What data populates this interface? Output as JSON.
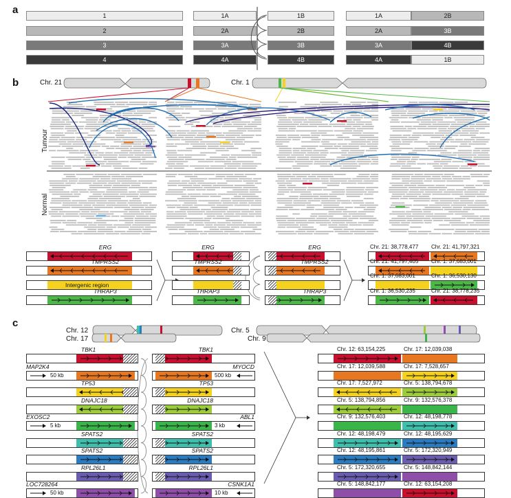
{
  "panel_labels": {
    "a": "a",
    "b": "b",
    "c": "c"
  },
  "panel_a": {
    "col1": [
      "1",
      "2",
      "3",
      "4"
    ],
    "col2_left": [
      "1A",
      "2A",
      "3A",
      "4A"
    ],
    "col2_right": [
      "1B",
      "2B",
      "3B",
      "4B"
    ],
    "col3_left": [
      "1A",
      "2A",
      "3A",
      "4A"
    ],
    "col3_right": [
      "2B",
      "3B",
      "4B",
      "1B"
    ],
    "shades": [
      "#ededed",
      "#b8b8b8",
      "#7a7a7a",
      "#3a3a3a"
    ]
  },
  "panel_b": {
    "chr21_label": "Chr. 21",
    "chr1_label": "Chr. 1",
    "tumour_label": "Tumour",
    "normal_label": "Normal",
    "left_genes": [
      {
        "name": "ERG",
        "color": "#c8102e",
        "dir": "left"
      },
      {
        "name": "TMPRSS2",
        "color": "#e87722",
        "dir": "left"
      },
      {
        "name": "Intergenic region",
        "color": "#f5d21f",
        "dir": "none"
      },
      {
        "name": "THRAP3",
        "color": "#4cb848",
        "dir": "right"
      }
    ],
    "mid_left_labels": [
      "ERG",
      "TMPRSS2",
      "",
      "THRAP3"
    ],
    "mid_right_labels": [
      "ERG",
      "TMPRSS2",
      "",
      "THRAP3"
    ],
    "result_coords": [
      [
        "Chr. 21: 38,778,477",
        "Chr. 21: 41,797,321"
      ],
      [
        "Chr. 21: 41,797,405",
        "Chr. 1: 37,683,001"
      ],
      [
        "Chr. 1: 37,683,001",
        "Chr. 1: 36,530,130"
      ],
      [
        "Chr. 1: 36,530,235",
        "Chr. 21: 38,778,235"
      ]
    ]
  },
  "panel_c": {
    "chr12_label": "Chr. 12",
    "chr17_label": "Chr. 17",
    "chr5_label": "Chr. 5",
    "chr9_label": "Chr. 9",
    "left_genes": [
      "TBK1",
      "MAP2K4",
      "TP53",
      "DNAJC18",
      "EXOSC2",
      "SPATS2",
      "SPATS2",
      "RPL26L1",
      "LOC728264"
    ],
    "left_scales": [
      "",
      "50 kb",
      "",
      "",
      "5 kb",
      "",
      "",
      "",
      "50 kb"
    ],
    "right_genes": [
      "TBK1",
      "MYOCD",
      "TP53",
      "DNAJC18",
      "ABL1",
      "SPATS2",
      "SPATS2",
      "RPL26L1",
      "CSNK1A1"
    ],
    "right_scales": [
      "",
      "500 kb",
      "",
      "",
      "3 kb",
      "",
      "",
      "",
      "10 kb"
    ],
    "colors": [
      "#c8102e",
      "#e87722",
      "#f5d21f",
      "#9ccb3b",
      "#3ab54a",
      "#3fbfad",
      "#2b7bc1",
      "#6a5db0",
      "#8e4fa8"
    ],
    "result_coords": [
      [
        "Chr. 12: 63,154,225",
        "Chr. 17: 12,039,038"
      ],
      [
        "Chr. 17: 12,039,588",
        "Chr. 17: 7,528,657"
      ],
      [
        "Chr. 17: 7,527,972",
        "Chr. 5: 138,794,678"
      ],
      [
        "Chr. 5: 138,794,856",
        "Chr. 9: 132,576,378"
      ],
      [
        "Chr. 9: 132,576,403",
        "Chr. 12: 48,198,778"
      ],
      [
        "Chr. 12: 48,198,479",
        "Chr. 12: 48,195,629"
      ],
      [
        "Chr. 12: 48,195,861",
        "Chr. 5: 172,320,949"
      ],
      [
        "Chr. 5: 172,320,655",
        "Chr. 5: 148,842,144"
      ],
      [
        "Chr. 5: 148,842,177",
        "Chr. 12: 63,154,208"
      ]
    ]
  }
}
